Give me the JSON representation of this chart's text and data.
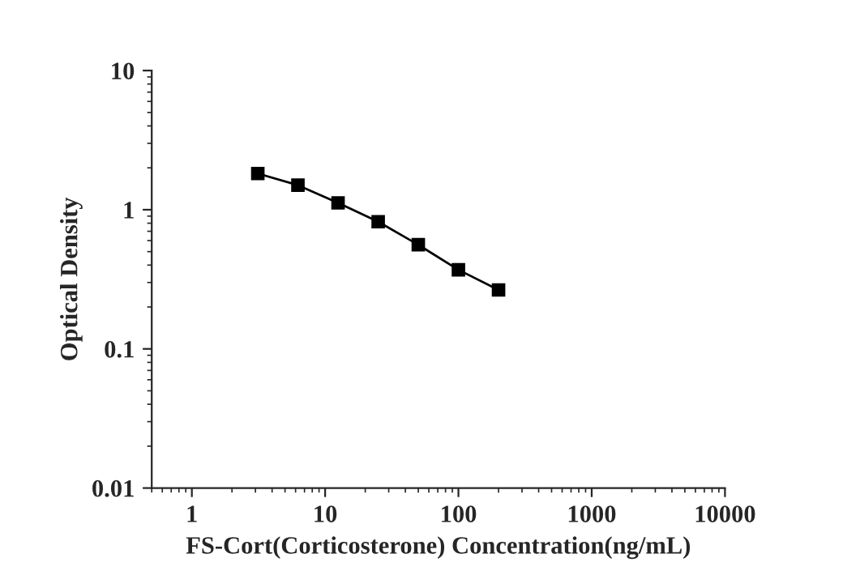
{
  "chart_data": {
    "type": "line",
    "xlabel": "FS-Cort(Corticosterone) Concentration(ng/mL)",
    "ylabel": "Optical Density",
    "log": "xy",
    "marker": "square",
    "line_style": "solid",
    "grid": false,
    "legend": false,
    "xlim": [
      0.5,
      10000
    ],
    "xticks": [
      1,
      10,
      100,
      1000,
      10000
    ],
    "ylim": [
      0.01,
      10
    ],
    "yticks": [
      0.01,
      0.1,
      1,
      10
    ],
    "x": [
      3.125,
      6.25,
      12.5,
      25,
      50,
      100,
      200
    ],
    "series": [
      {
        "color": "#000000",
        "values": [
          1.82,
          1.5,
          1.12,
          0.82,
          0.56,
          0.37,
          0.265
        ]
      }
    ]
  }
}
